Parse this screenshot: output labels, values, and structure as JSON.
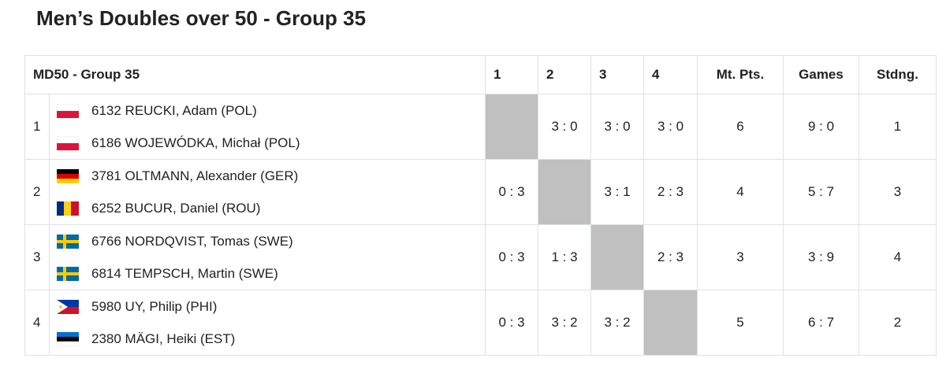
{
  "page": {
    "title": "Men’s Doubles over 50 - Group 35"
  },
  "table": {
    "header": [
      "MD50 - Group 35",
      "1",
      "2",
      "3",
      "4",
      "Mt. Pts.",
      "Games",
      "Stdng."
    ],
    "rows": [
      {
        "rank": 1,
        "players": [
          "6132 REUCKI, Adam (POL)",
          "6186 WOJEWÓDKA, Michał (POL)"
        ],
        "results": [
          null,
          "3 : 0",
          "3 : 0",
          "3 : 0"
        ],
        "points": 6,
        "games": "9 : 0",
        "standing": 1
      },
      {
        "rank": 2,
        "players": [
          "3781 OLTMANN, Alexander (GER)",
          "6252 BUCUR, Daniel (ROU)"
        ],
        "results": [
          "0 : 3",
          null,
          "3 : 1",
          "2 : 3"
        ],
        "points": 4,
        "games": "5 : 7",
        "standing": 3
      },
      {
        "rank": 3,
        "players": [
          "6766 NORDQVIST, Tomas (SWE)",
          "6814 TEMPSCH, Martin (SWE)"
        ],
        "results": [
          "0 : 3",
          "1 : 3",
          null,
          "2 : 3"
        ],
        "points": 3,
        "games": "3 : 9",
        "standing": 4
      },
      {
        "rank": 4,
        "players": [
          "5980 UY, Philip (PHI)",
          "2380 MÄGI, Heiki (EST)"
        ],
        "results": [
          "0 : 3",
          "3 : 2",
          "3 : 2",
          null
        ],
        "points": 5,
        "games": "6 : 7",
        "standing": 2
      }
    ]
  }
}
